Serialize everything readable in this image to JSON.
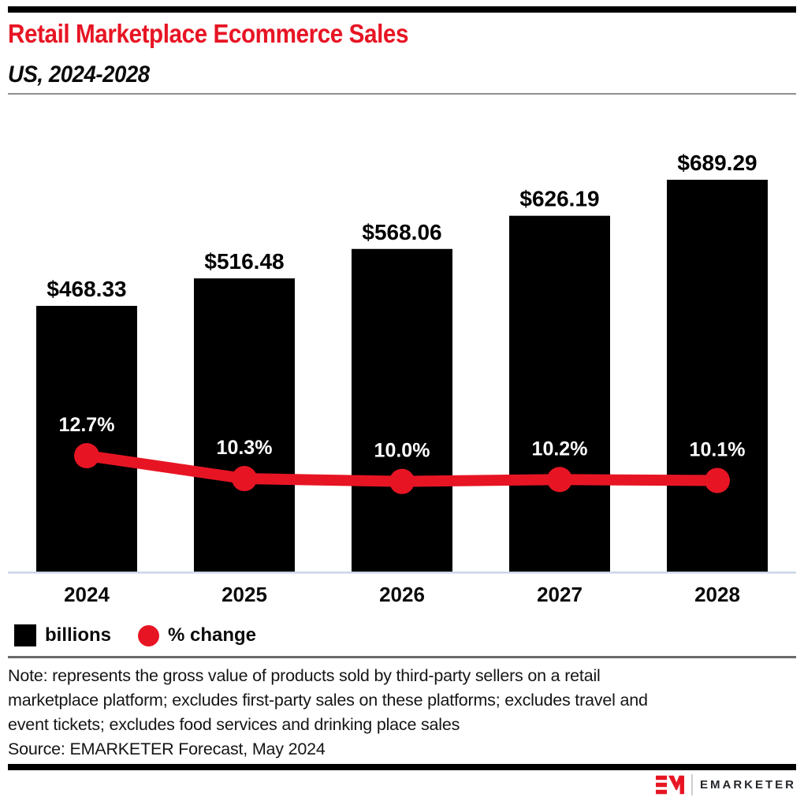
{
  "header": {
    "title": "Retail Marketplace Ecommerce Sales",
    "subtitle": "US, 2024-2028",
    "accent_color": "#e71524"
  },
  "chart_data": {
    "type": "bar",
    "subtype": "bar+line combo",
    "categories": [
      "2024",
      "2025",
      "2026",
      "2027",
      "2028"
    ],
    "series": [
      {
        "name": "billions",
        "type": "bar",
        "color": "#000000",
        "values": [
          468.33,
          516.48,
          568.06,
          626.19,
          689.29
        ],
        "labels": [
          "$468.33",
          "$516.48",
          "$568.06",
          "$626.19",
          "$689.29"
        ],
        "label_color": "#000000"
      },
      {
        "name": "% change",
        "type": "line",
        "color": "#e71524",
        "values": [
          12.7,
          10.3,
          10.0,
          10.2,
          10.1
        ],
        "labels": [
          "12.7%",
          "10.3%",
          "10.0%",
          "10.2%",
          "10.1%"
        ],
        "label_color": "#ffffff"
      }
    ],
    "legend": [
      {
        "label": "billions",
        "swatch": "square",
        "color": "#000000"
      },
      {
        "label": "% change",
        "swatch": "circle",
        "color": "#e71524"
      }
    ],
    "axes": {
      "x_ticks": [
        "2024",
        "2025",
        "2026",
        "2027",
        "2028"
      ],
      "y_axis_visible": false,
      "gridlines": false,
      "baseline_color": "#ccd5e6"
    },
    "title": "Retail Marketplace Ecommerce Sales",
    "subtitle": "US, 2024-2028"
  },
  "note": {
    "lines": [
      "Note: represents the gross value of products sold by third-party sellers on a retail",
      "marketplace platform; excludes first-party sales on these platforms; excludes travel and",
      "event tickets; excludes food services and drinking place sales"
    ]
  },
  "source": "Source: EMARKETER Forecast, May 2024",
  "footer": {
    "brand": "EMARKETER"
  }
}
